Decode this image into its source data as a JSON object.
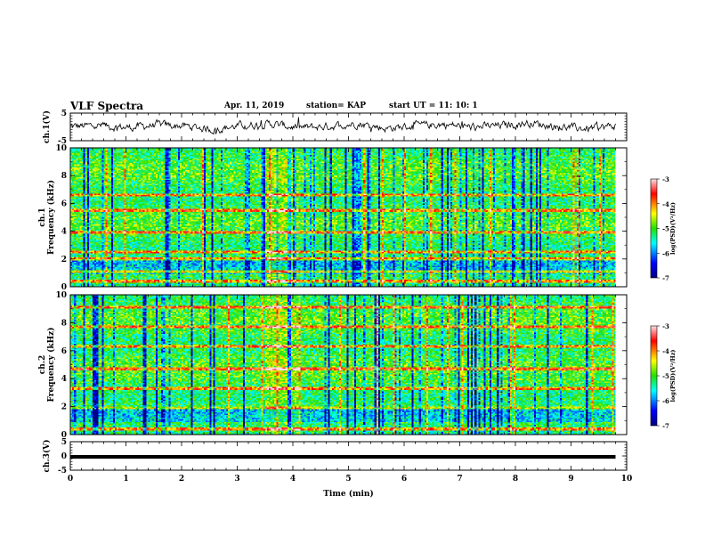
{
  "header": {
    "title": "VLF Spectra",
    "date": "Apr. 11, 2019",
    "station": "station= KAP",
    "start_ut": "start  UT  =   11: 10: 1"
  },
  "chart_data": [
    {
      "type": "line",
      "panel": "ch1-waveform",
      "ylabel": "ch.1(V)",
      "ylim": [
        -5,
        5
      ],
      "yticks": [
        5,
        -5
      ],
      "xlim": [
        0,
        10
      ],
      "x_extent_min": 9.8,
      "series": [
        {
          "values": [
            0.2,
            0.8,
            -0.4,
            1.2,
            0.5,
            -1.6,
            0.9,
            1.8,
            -0.6,
            0.3,
            2.1,
            -0.9,
            0.6,
            1.5,
            -0.2,
            0.8,
            2.4,
            0.1,
            -1.1,
            0.7
          ]
        }
      ]
    },
    {
      "type": "heatmap",
      "panel": "ch1-spectrogram",
      "ylabel": "ch.1\nFrequency (kHz)",
      "ylim": [
        0,
        10
      ],
      "yticks": [
        0,
        2,
        4,
        6,
        8,
        10
      ],
      "xlim": [
        0,
        10
      ],
      "x_extent_min": 9.8,
      "colorbar": {
        "label": "log(PSD)(V²/Hz)",
        "range": [
          -7,
          -3
        ],
        "ticks": [
          -3,
          -4,
          -5,
          -6,
          -7
        ]
      },
      "bright_lines_khz": [
        0.4,
        1.1,
        2.0,
        2.5,
        3.9,
        5.5,
        6.6
      ],
      "burst_window_min": [
        3.5,
        4.1
      ]
    },
    {
      "type": "heatmap",
      "panel": "ch2-spectrogram",
      "ylabel": "ch.2\nFrequency (kHz)",
      "ylim": [
        0,
        10
      ],
      "yticks": [
        0,
        2,
        4,
        6,
        8,
        10
      ],
      "xlim": [
        0,
        10
      ],
      "x_extent_min": 9.8,
      "colorbar": {
        "label": "log(PSD)(V²/Hz)",
        "range": [
          -7,
          -3
        ],
        "ticks": [
          -3,
          -4,
          -5,
          -6,
          -7
        ]
      },
      "bright_lines_khz": [
        0.4,
        1.9,
        3.3,
        4.7,
        6.3,
        7.7,
        9.1
      ],
      "burst_window_min": [
        3.5,
        4.1
      ]
    },
    {
      "type": "line",
      "panel": "ch3-waveform",
      "ylabel": "ch.3(V)",
      "ylim": [
        -5,
        5
      ],
      "yticks": [
        5,
        0,
        -5
      ],
      "xlim": [
        0,
        10
      ],
      "x_extent_min": 9.8,
      "series": [
        {
          "values": [
            -0.3,
            -0.3
          ]
        }
      ],
      "xlabel": "Time  (min)",
      "xticks": [
        0,
        1,
        2,
        3,
        4,
        5,
        6,
        7,
        8,
        9,
        10
      ]
    }
  ]
}
